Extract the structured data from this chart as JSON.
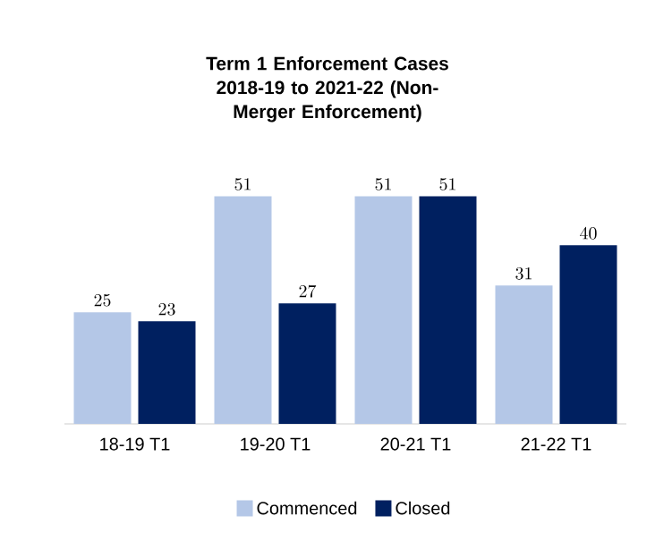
{
  "chart_data": {
    "type": "bar",
    "title": "Term 1 Enforcement Cases",
    "subtitle": "2018-19 to 2021-22 (Non-Merger Enforcement)",
    "categories": [
      "18-19 T1",
      "19-20 T1",
      "20-21 T1",
      "21-22 T1"
    ],
    "series": [
      {
        "name": "Commenced",
        "color": "#b4c7e7",
        "values": [
          25,
          51,
          51,
          31
        ]
      },
      {
        "name": "Closed",
        "color": "#002060",
        "values": [
          23,
          27,
          51,
          40
        ]
      }
    ],
    "data_labels": true,
    "legend": "bottom"
  }
}
